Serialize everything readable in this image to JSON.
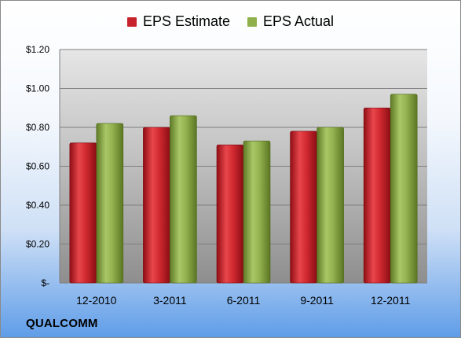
{
  "chart_data": {
    "type": "bar",
    "categories": [
      "12-2010",
      "3-2011",
      "6-2011",
      "9-2011",
      "12-2011"
    ],
    "series": [
      {
        "name": "EPS Estimate",
        "color": "#c8232c",
        "values": [
          0.72,
          0.8,
          0.71,
          0.78,
          0.9
        ]
      },
      {
        "name": "EPS Actual",
        "color": "#8fb04a",
        "values": [
          0.82,
          0.86,
          0.73,
          0.8,
          0.97
        ]
      }
    ],
    "ylim": [
      0,
      1.2
    ],
    "yticks": [
      0,
      0.2,
      0.4,
      0.6,
      0.8,
      1.0,
      1.2
    ],
    "ytick_labels": [
      "$-",
      "$0.20",
      "$0.40",
      "$0.60",
      "$0.80",
      "$1.00",
      "$1.20"
    ],
    "grid": true,
    "legend_position": "top-center"
  },
  "brand": "QUALCOMM"
}
